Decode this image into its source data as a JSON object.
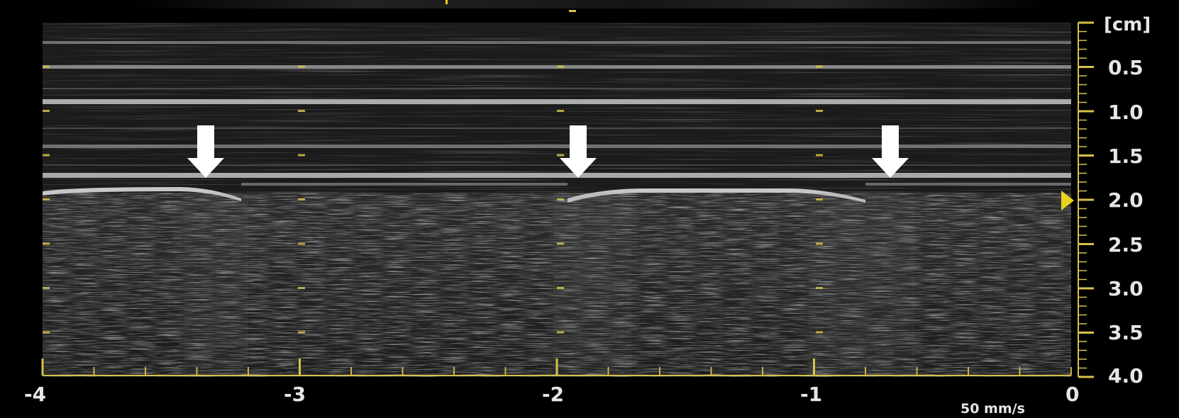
{
  "depth_scale": {
    "unit": "[cm]",
    "labels": [
      "0.5",
      "1.0",
      "1.5",
      "2.0",
      "2.5",
      "3.0",
      "3.5",
      "4.0"
    ]
  },
  "time_axis": {
    "labels": [
      "-4",
      "-3",
      "-2",
      "-1",
      "0"
    ]
  },
  "sweep_speed": "50 mm/s",
  "colors": {
    "background": "#000000",
    "scale": "#d6c24a",
    "focus_marker": "#e9d21e",
    "text": "#e6e6e6",
    "arrow": "#ffffff"
  },
  "annotations": {
    "arrow_count": 3
  }
}
